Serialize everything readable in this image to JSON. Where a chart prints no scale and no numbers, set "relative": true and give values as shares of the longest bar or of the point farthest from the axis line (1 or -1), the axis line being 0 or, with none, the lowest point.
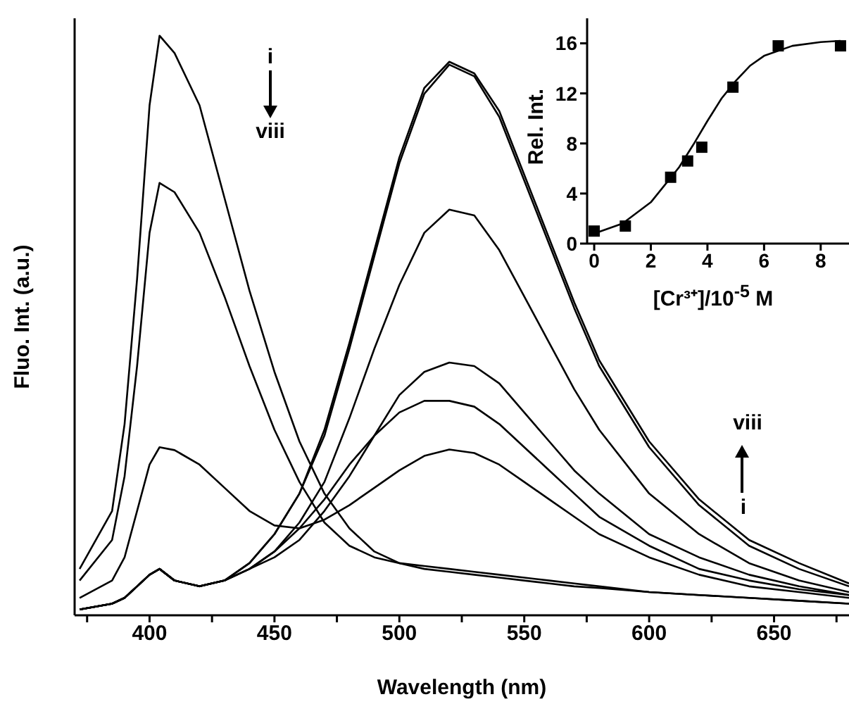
{
  "chart_data": [
    {
      "type": "line",
      "relative": true,
      "xlabel": "Wavelength (nm)",
      "ylabel": "Fluo. Int. (a.u.)",
      "xlim": [
        370,
        680
      ],
      "xticks": [
        {
          "value": 375,
          "label": null
        },
        400,
        {
          "value": 425,
          "label": null
        },
        450,
        {
          "value": 475,
          "label": null
        },
        500,
        {
          "value": 525,
          "label": null
        },
        550,
        {
          "value": 575,
          "label": null
        },
        600,
        {
          "value": 625,
          "label": null
        },
        650,
        {
          "value": 675,
          "label": null
        }
      ],
      "marker": "none",
      "line_style": "solid",
      "grid": false,
      "tick_labels": "x",
      "annotations": [
        "i",
        "viii",
        "viii",
        "i"
      ],
      "x": [
        372,
        385,
        390,
        395,
        400,
        404,
        410,
        420,
        430,
        440,
        450,
        460,
        470,
        480,
        490,
        500,
        510,
        520,
        530,
        540,
        550,
        560,
        570,
        580,
        600,
        620,
        640,
        660,
        680
      ],
      "series": [
        {
          "color": "#000000",
          "values": [
            0.08,
            0.18,
            0.33,
            0.58,
            0.88,
            1.0,
            0.97,
            0.88,
            0.72,
            0.56,
            0.42,
            0.3,
            0.21,
            0.15,
            0.11,
            0.09,
            0.08,
            0.075,
            0.07,
            0.065,
            0.06,
            0.055,
            0.05,
            0.047,
            0.04,
            0.035,
            0.03,
            0.025,
            0.02
          ]
        },
        {
          "color": "#000000",
          "values": [
            0.06,
            0.13,
            0.24,
            0.43,
            0.66,
            0.746,
            0.73,
            0.66,
            0.55,
            0.43,
            0.32,
            0.23,
            0.16,
            0.12,
            0.1,
            0.09,
            0.085,
            0.08,
            0.075,
            0.07,
            0.065,
            0.06,
            0.055,
            0.05,
            0.04,
            0.035,
            0.03,
            0.025,
            0.02
          ]
        },
        {
          "color": "#000000",
          "values": [
            0.03,
            0.06,
            0.1,
            0.18,
            0.26,
            0.29,
            0.285,
            0.26,
            0.22,
            0.18,
            0.155,
            0.15,
            0.165,
            0.19,
            0.22,
            0.25,
            0.275,
            0.286,
            0.28,
            0.26,
            0.23,
            0.2,
            0.17,
            0.14,
            0.1,
            0.07,
            0.05,
            0.04,
            0.03
          ]
        },
        {
          "color": "#000000",
          "values": [
            0.01,
            0.02,
            0.03,
            0.05,
            0.07,
            0.08,
            0.06,
            0.05,
            0.06,
            0.08,
            0.11,
            0.15,
            0.2,
            0.26,
            0.31,
            0.35,
            0.37,
            0.37,
            0.36,
            0.33,
            0.29,
            0.25,
            0.21,
            0.17,
            0.12,
            0.08,
            0.06,
            0.045,
            0.035
          ]
        },
        {
          "color": "#000000",
          "values": [
            0.01,
            0.02,
            0.03,
            0.05,
            0.07,
            0.08,
            0.06,
            0.05,
            0.06,
            0.08,
            0.1,
            0.13,
            0.18,
            0.24,
            0.31,
            0.38,
            0.42,
            0.436,
            0.43,
            0.4,
            0.35,
            0.3,
            0.25,
            0.21,
            0.14,
            0.1,
            0.07,
            0.05,
            0.035
          ]
        },
        {
          "color": "#000000",
          "values": [
            0.01,
            0.02,
            0.03,
            0.05,
            0.07,
            0.08,
            0.06,
            0.05,
            0.06,
            0.08,
            0.11,
            0.16,
            0.23,
            0.34,
            0.46,
            0.57,
            0.66,
            0.7,
            0.69,
            0.63,
            0.55,
            0.47,
            0.39,
            0.32,
            0.21,
            0.14,
            0.09,
            0.06,
            0.04
          ]
        },
        {
          "color": "#000000",
          "values": [
            0.01,
            0.02,
            0.03,
            0.05,
            0.07,
            0.08,
            0.06,
            0.05,
            0.06,
            0.09,
            0.14,
            0.21,
            0.31,
            0.46,
            0.62,
            0.78,
            0.9,
            0.95,
            0.93,
            0.86,
            0.75,
            0.64,
            0.53,
            0.43,
            0.29,
            0.19,
            0.12,
            0.08,
            0.05
          ]
        },
        {
          "color": "#000000",
          "values": [
            0.01,
            0.02,
            0.03,
            0.05,
            0.07,
            0.08,
            0.06,
            0.05,
            0.06,
            0.09,
            0.14,
            0.21,
            0.32,
            0.47,
            0.63,
            0.79,
            0.91,
            0.955,
            0.935,
            0.87,
            0.76,
            0.65,
            0.54,
            0.44,
            0.3,
            0.2,
            0.13,
            0.09,
            0.055
          ]
        }
      ]
    },
    {
      "type": "scatter",
      "xlabel": "[Cr³⁺]/10$^{-5}$ M",
      "ylabel": "Rel. Int.",
      "xlim": [
        -0.25,
        9
      ],
      "xticks": [
        0,
        2,
        4,
        6,
        8
      ],
      "ylim": [
        0,
        18
      ],
      "yticks": [
        0,
        4,
        8,
        12,
        16
      ],
      "grid": false,
      "series": [
        {
          "type": "scatter",
          "marker": "square",
          "color": "#000000",
          "x": [
            0,
            1.1,
            2.7,
            3.3,
            3.8,
            4.9,
            6.5,
            8.7
          ],
          "values": [
            1.0,
            1.4,
            5.3,
            6.6,
            7.7,
            12.5,
            15.8,
            15.8
          ]
        },
        {
          "type": "line",
          "marker": "none",
          "color": "#000000",
          "x": [
            0,
            1,
            2,
            3,
            3.5,
            4,
            4.5,
            5,
            5.5,
            6,
            7,
            8,
            8.7
          ],
          "values": [
            0.8,
            1.6,
            3.3,
            6.1,
            7.9,
            9.8,
            11.6,
            13.0,
            14.2,
            15.0,
            15.8,
            16.1,
            16.2
          ]
        }
      ]
    }
  ]
}
